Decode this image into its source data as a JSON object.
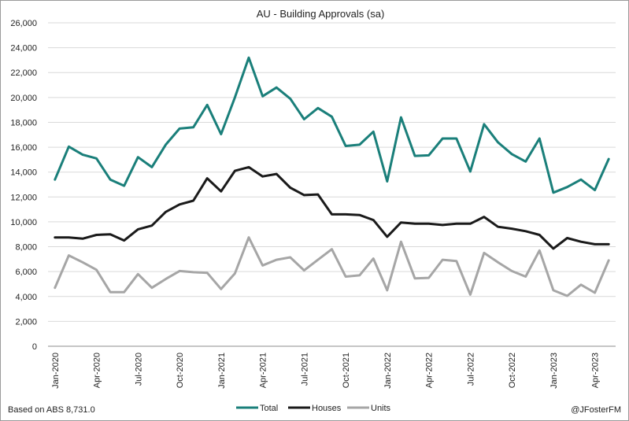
{
  "chart_data": {
    "type": "line",
    "title": "AU - Building Approvals (sa)",
    "x": [
      "Jan-2020",
      "Feb-2020",
      "Mar-2020",
      "Apr-2020",
      "May-2020",
      "Jun-2020",
      "Jul-2020",
      "Aug-2020",
      "Sep-2020",
      "Oct-2020",
      "Nov-2020",
      "Dec-2020",
      "Jan-2021",
      "Feb-2021",
      "Mar-2021",
      "Apr-2021",
      "May-2021",
      "Jun-2021",
      "Jul-2021",
      "Aug-2021",
      "Sep-2021",
      "Oct-2021",
      "Nov-2021",
      "Dec-2021",
      "Jan-2022",
      "Feb-2022",
      "Mar-2022",
      "Apr-2022",
      "May-2022",
      "Jun-2022",
      "Jul-2022",
      "Aug-2022",
      "Sep-2022",
      "Oct-2022",
      "Nov-2022",
      "Dec-2022",
      "Jan-2023",
      "Feb-2023",
      "Mar-2023",
      "Apr-2023",
      "May-2023"
    ],
    "x_tick_labels": [
      "Jan-2020",
      "Apr-2020",
      "Jul-2020",
      "Oct-2020",
      "Jan-2021",
      "Apr-2021",
      "Jul-2021",
      "Oct-2021",
      "Jan-2022",
      "Apr-2022",
      "Jul-2022",
      "Oct-2022",
      "Jan-2023",
      "Apr-2023"
    ],
    "ylim": [
      0,
      26000
    ],
    "y_ticks": [
      0,
      2000,
      4000,
      6000,
      8000,
      10000,
      12000,
      14000,
      16000,
      18000,
      20000,
      22000,
      24000,
      26000
    ],
    "y_tick_labels": [
      "0",
      "2,000",
      "4,000",
      "6,000",
      "8,000",
      "10,000",
      "12,000",
      "14,000",
      "16,000",
      "18,000",
      "20,000",
      "22,000",
      "24,000",
      "26,000"
    ],
    "grid": "horizontal",
    "legend_position": "bottom",
    "series": [
      {
        "name": "Total",
        "color": "#1a7f7a",
        "values": [
          13400,
          16050,
          15400,
          15100,
          13400,
          12900,
          15200,
          14400,
          16200,
          17500,
          17600,
          19400,
          17050,
          20000,
          23200,
          20100,
          20800,
          19900,
          18250,
          19150,
          18450,
          16100,
          16200,
          17250,
          13250,
          18400,
          15300,
          15350,
          16700,
          16700,
          14050,
          17850,
          16400,
          15450,
          14850,
          16700,
          12350,
          12800,
          13400,
          12550,
          15050
        ]
      },
      {
        "name": "Houses",
        "color": "#1a1a1a",
        "values": [
          8750,
          8750,
          8650,
          8950,
          9000,
          8500,
          9400,
          9700,
          10800,
          11400,
          11700,
          13500,
          12450,
          14100,
          14400,
          13650,
          13850,
          12750,
          12150,
          12200,
          10600,
          10600,
          10550,
          10150,
          8800,
          9950,
          9850,
          9850,
          9750,
          9850,
          9850,
          10400,
          9600,
          9450,
          9250,
          8950,
          7850,
          8700,
          8400,
          8200,
          8200
        ]
      },
      {
        "name": "Units",
        "color": "#a6a6a6",
        "values": [
          4700,
          7300,
          6750,
          6150,
          4350,
          4350,
          5800,
          4700,
          5400,
          6050,
          5950,
          5900,
          4600,
          5850,
          8750,
          6500,
          6950,
          7150,
          6100,
          6950,
          7800,
          5600,
          5700,
          7050,
          4500,
          8400,
          5450,
          5500,
          6950,
          6850,
          4150,
          7500,
          6750,
          6050,
          5600,
          7700,
          4500,
          4050,
          4950,
          4300,
          6900
        ]
      }
    ]
  },
  "footer": {
    "source_note": "Based on ABS 8,731.0",
    "author_handle": "@JFosterFM"
  }
}
